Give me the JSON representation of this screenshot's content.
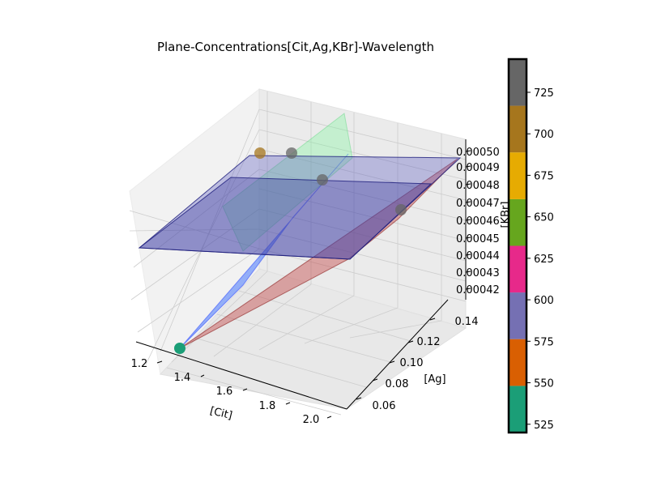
{
  "chart_data": {
    "type": "scatter",
    "title": "Plane-Concentrations[Cit,Ag,KBr]-Wavelength",
    "xlabel": "[Cit]",
    "ylabel": "[Ag]",
    "zlabel": "[KBr]",
    "x_ticks": [
      "1.2",
      "1.4",
      "1.6",
      "1.8",
      "2.0"
    ],
    "y_ticks": [
      "0.06",
      "0.08",
      "0.10",
      "0.12",
      "0.14"
    ],
    "z_ticks": [
      "0.00042",
      "0.00043",
      "0.00044",
      "0.00045",
      "0.00046",
      "0.00047",
      "0.00048",
      "0.00049",
      "0.00050"
    ],
    "xlim": [
      1.15,
      2.1
    ],
    "ylim": [
      0.05,
      0.15
    ],
    "zlim": [
      0.000415,
      0.000505
    ],
    "points": [
      {
        "x": 1.35,
        "y": 0.05,
        "z": 0.00042,
        "wavelength": 525
      },
      {
        "x": 1.15,
        "y": 0.14,
        "z": 0.0005,
        "wavelength": 690
      },
      {
        "x": 1.35,
        "y": 0.14,
        "z": 0.0005,
        "wavelength": 740
      },
      {
        "x": 1.55,
        "y": 0.14,
        "z": 0.00048,
        "wavelength": 740
      },
      {
        "x": 2.05,
        "y": 0.14,
        "z": 0.000455,
        "wavelength": 740
      }
    ],
    "colorbar": {
      "ticks": [
        "525",
        "550",
        "575",
        "600",
        "625",
        "650",
        "675",
        "700",
        "725"
      ],
      "range": [
        520,
        745
      ],
      "segments": [
        {
          "from": 520,
          "to": 548.1,
          "color": "#1b9e77"
        },
        {
          "from": 548.1,
          "to": 576.3,
          "color": "#d95f02"
        },
        {
          "from": 576.3,
          "to": 604.4,
          "color": "#7570b3"
        },
        {
          "from": 604.4,
          "to": 632.5,
          "color": "#e7298a"
        },
        {
          "from": 632.5,
          "to": 660.6,
          "color": "#66a61e"
        },
        {
          "from": 660.6,
          "to": 688.8,
          "color": "#e6ab02"
        },
        {
          "from": 688.8,
          "to": 716.9,
          "color": "#a6761d"
        },
        {
          "from": 716.9,
          "to": 745,
          "color": "#666666"
        }
      ]
    }
  }
}
